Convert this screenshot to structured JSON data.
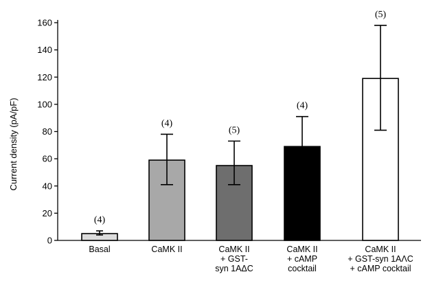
{
  "chart_data": {
    "type": "bar",
    "ylabel": "Current density (pA/pF)",
    "xlabel": "",
    "ylim": [
      0,
      160
    ],
    "yticks": [
      0,
      20,
      40,
      60,
      80,
      100,
      120,
      140,
      160
    ],
    "categories": [
      [
        "Basal"
      ],
      [
        "CaMK II"
      ],
      [
        "CaMK II",
        "+ GST-",
        "syn 1AΔC"
      ],
      [
        "CaMK II",
        "+ cAMP",
        "cocktail"
      ],
      [
        "CaMK II",
        "+ GST-syn 1AΛC",
        "+ cAMP cocktail"
      ]
    ],
    "values": [
      5,
      59,
      55,
      69,
      119
    ],
    "error_upper": [
      7,
      78,
      73,
      91,
      158
    ],
    "error_lower": [
      4,
      41,
      41,
      50,
      81
    ],
    "n_labels": [
      "(4)",
      "(4)",
      "(5)",
      "(4)",
      "(5)"
    ],
    "colors": [
      "#dcdcdc",
      "#a8a8a8",
      "#6e6e6e",
      "#000000",
      "#ffffff"
    ]
  }
}
